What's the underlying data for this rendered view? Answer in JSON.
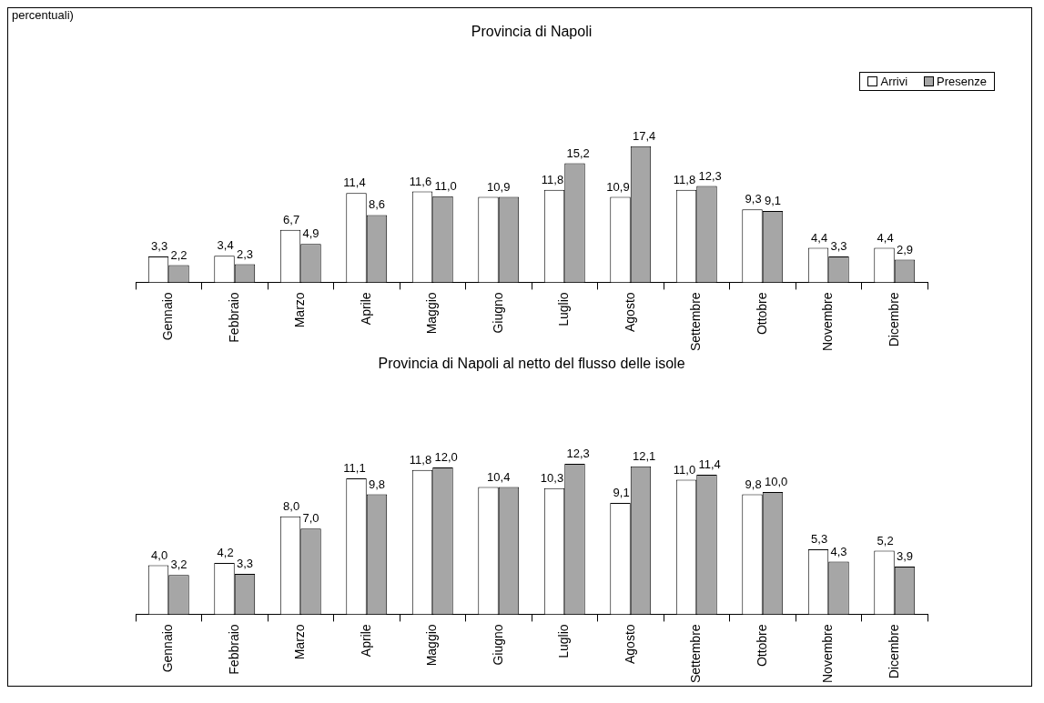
{
  "chart_data": [
    {
      "type": "bar",
      "title": "Provincia di Napoli",
      "annotations": [
        "percentuali)"
      ],
      "categories": [
        "Gennaio",
        "Febbraio",
        "Marzo",
        "Aprile",
        "Maggio",
        "Giugno",
        "Luglio",
        "Agosto",
        "Settembre",
        "Ottobre",
        "Novembre",
        "Dicembre"
      ],
      "tick_labels": "x",
      "legend": "top right",
      "grid": false,
      "series": [
        {
          "name": "Arrivi",
          "color": "#ffffff",
          "values": [
            3.3,
            3.4,
            6.7,
            11.4,
            11.6,
            10.9,
            11.8,
            10.9,
            11.8,
            9.3,
            4.4,
            4.4
          ],
          "value_labels": [
            "3,3",
            "3,4",
            "6,7",
            "11,4",
            "11,6",
            "10,9",
            "11,8",
            "10,9",
            "11,8",
            "9,3",
            "4,4",
            "4,4"
          ]
        },
        {
          "name": "Presenze",
          "color": "#a6a6a6",
          "values": [
            2.2,
            2.3,
            4.9,
            8.6,
            11.0,
            10.9,
            15.2,
            17.4,
            12.3,
            9.1,
            3.3,
            2.9
          ],
          "value_labels": [
            "2,2",
            "2,3",
            "4,9",
            "8,6",
            "11,0",
            null,
            "15,2",
            "17,4",
            "12,3",
            "9,1",
            "3,3",
            "2,9"
          ]
        }
      ]
    },
    {
      "type": "bar",
      "title": "Provincia di Napoli al netto del flusso delle isole",
      "categories": [
        "Gennaio",
        "Febbraio",
        "Marzo",
        "Aprile",
        "Maggio",
        "Giugno",
        "Luglio",
        "Agosto",
        "Settembre",
        "Ottobre",
        "Novembre",
        "Dicembre"
      ],
      "tick_labels": "x",
      "grid": false,
      "series": [
        {
          "color": "#ffffff",
          "values": [
            4.0,
            4.2,
            8.0,
            11.1,
            11.8,
            10.4,
            10.3,
            9.1,
            11.0,
            9.8,
            5.3,
            5.2
          ],
          "value_labels": [
            "4,0",
            "4,2",
            "8,0",
            "11,1",
            "11,8",
            "10,4",
            "10,3",
            "9,1",
            "11,0",
            "9,8",
            "5,3",
            "5,2"
          ]
        },
        {
          "color": "#a6a6a6",
          "values": [
            3.2,
            3.3,
            7.0,
            9.8,
            12.0,
            10.4,
            12.3,
            12.1,
            11.4,
            10.0,
            4.3,
            3.9
          ],
          "value_labels": [
            "3,2",
            "3,3",
            "7,0",
            "9,8",
            "12,0",
            null,
            "12,3",
            "12,1",
            "11,4",
            "10,0",
            "4,3",
            "3,9"
          ]
        }
      ]
    }
  ]
}
